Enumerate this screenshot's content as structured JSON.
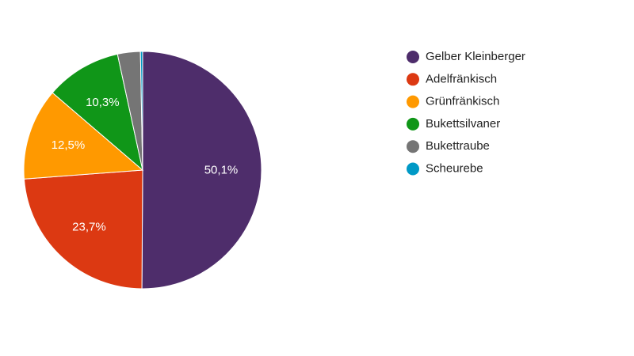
{
  "chart_data": {
    "type": "pie",
    "categories": [
      "Gelber Kleinberger",
      "Adelfränkisch",
      "Grünfränkisch",
      "Bukettsilvaner",
      "Bukettraube",
      "Scheurebe"
    ],
    "values": [
      50.1,
      23.7,
      12.5,
      10.3,
      3.1,
      0.3
    ],
    "value_labels": [
      "50,1%",
      "23,7%",
      "12,5%",
      "10,3%",
      null,
      null
    ],
    "colors": [
      "#4e2d6b",
      "#dc3912",
      "#ff9900",
      "#109618",
      "#757575",
      "#0099c6"
    ],
    "legend": "right"
  }
}
